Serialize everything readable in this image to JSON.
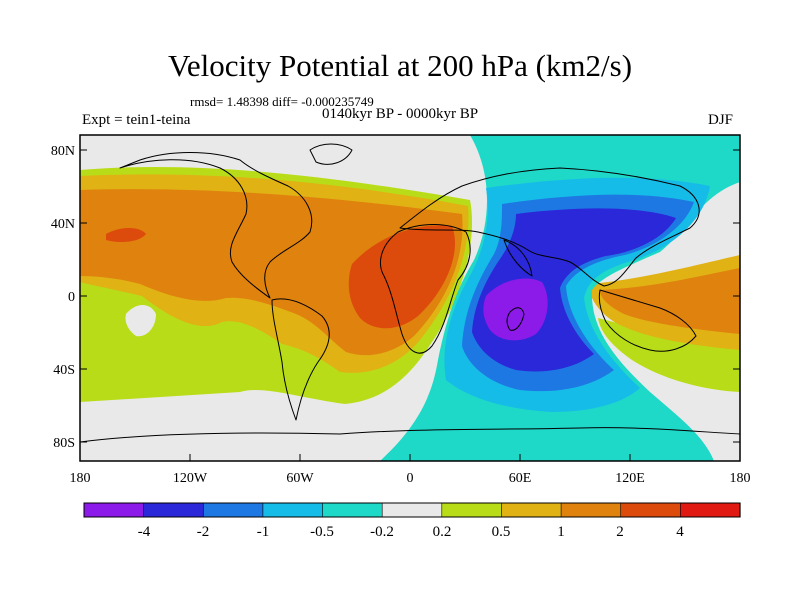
{
  "title": "Velocity Potential at 200 hPa (km2/s)",
  "stats_line": "rmsd= 1.48398 diff= -0.000235749",
  "experiment_label": "Expt = tein1-teina",
  "period_label": "0140kyr BP - 0000kyr BP",
  "season_label": "DJF",
  "map": {
    "projection": "equirectangular",
    "lon_range": [
      -180,
      180
    ],
    "lat_range": [
      -90,
      90
    ],
    "lon_tick_labels": [
      "180",
      "120W",
      "60W",
      "0",
      "60E",
      "120E",
      "180"
    ],
    "lat_tick_labels": [
      "80N",
      "40N",
      "0",
      "40S",
      "80S"
    ]
  },
  "colorbar": {
    "labels": [
      "-4",
      "-2",
      "-1",
      "-0.5",
      "-0.2",
      "0.2",
      "0.5",
      "1",
      "2",
      "4"
    ],
    "colors": [
      "#8c1ae8",
      "#2a28d8",
      "#1e78e4",
      "#16bce8",
      "#1ed8c8",
      "#e9e9e9",
      "#b8dd18",
      "#e0b214",
      "#e0820e",
      "#dc4a0c",
      "#e01a12"
    ]
  }
}
